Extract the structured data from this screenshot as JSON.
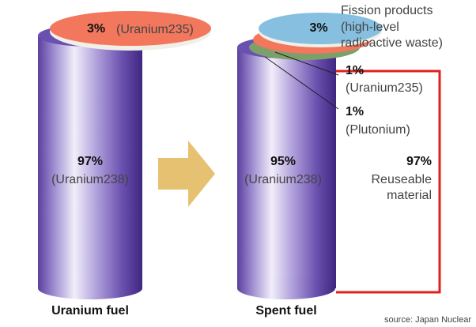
{
  "uranium_fuel": {
    "top": {
      "percent": "3%",
      "label": "(Uranium235)"
    },
    "body": {
      "percent": "97%",
      "label": "(Uranium238)"
    },
    "caption": "Uranium fuel"
  },
  "spent_fuel": {
    "fission": {
      "percent": "3%",
      "label_lines": [
        "Fission products",
        "(high-level",
        "radioactive waste)"
      ]
    },
    "uranium235": {
      "percent": "1%",
      "label": "(Uranium235)"
    },
    "plutonium": {
      "percent": "1%",
      "label": "(Plutonium)"
    },
    "body": {
      "percent": "95%",
      "label": "(Uranium238)"
    },
    "reusable": {
      "percent": "97%",
      "label_lines": [
        "Reuseable",
        "material"
      ]
    },
    "caption": "Spent fuel"
  },
  "source": "source: Japan Nuclear"
}
